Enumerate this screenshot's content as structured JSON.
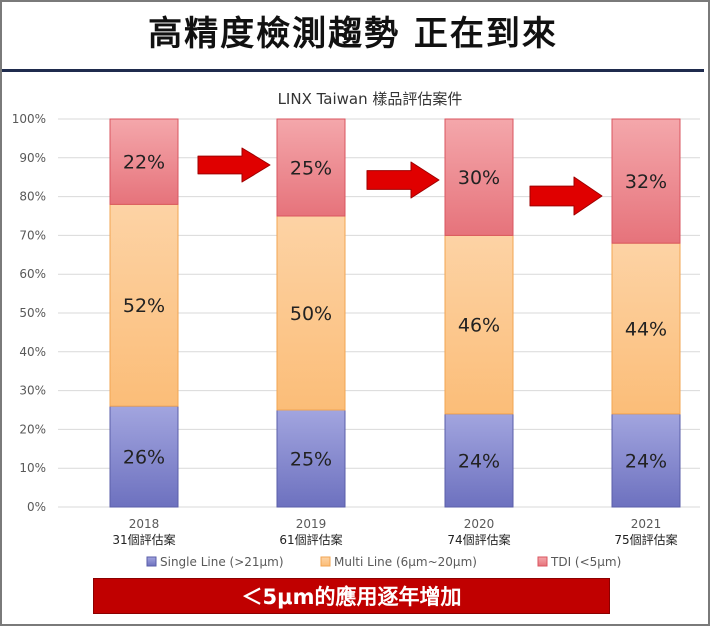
{
  "page": {
    "headline": "高精度檢測趨勢 正在到來",
    "banner": "＜5μm的應用逐年增加"
  },
  "chart_data": {
    "type": "bar",
    "stacked": true,
    "percent": true,
    "title": "LINX Taiwan 樣品評估案件",
    "categories": [
      "2018",
      "2019",
      "2020",
      "2021"
    ],
    "category_sublabels": [
      "31個評估案",
      "61個評估案",
      "74個評估案",
      "75個評估案"
    ],
    "ylim": [
      0,
      100
    ],
    "yticks": [
      "0%",
      "10%",
      "20%",
      "30%",
      "40%",
      "50%",
      "60%",
      "70%",
      "80%",
      "90%",
      "100%"
    ],
    "grid": true,
    "legend_position": "bottom",
    "series": [
      {
        "name": "Single Line (>21μm)",
        "values": [
          26,
          25,
          24,
          24
        ],
        "labels": [
          "26%",
          "25%",
          "24%",
          "24%"
        ],
        "color": "#7b7fc7"
      },
      {
        "name": "Multi Line (6μm~20μm)",
        "values": [
          52,
          50,
          46,
          44
        ],
        "labels": [
          "52%",
          "50%",
          "46%",
          "44%"
        ],
        "color": "#fcc484"
      },
      {
        "name": "TDI (<5μm)",
        "values": [
          22,
          25,
          30,
          32
        ],
        "labels": [
          "22%",
          "25%",
          "30%",
          "32%"
        ],
        "color": "#eb7f86"
      }
    ],
    "annotations": [
      "arrow-2018-2019",
      "arrow-2019-2020",
      "arrow-2020-2021"
    ],
    "arrow_color": "#e00000"
  }
}
